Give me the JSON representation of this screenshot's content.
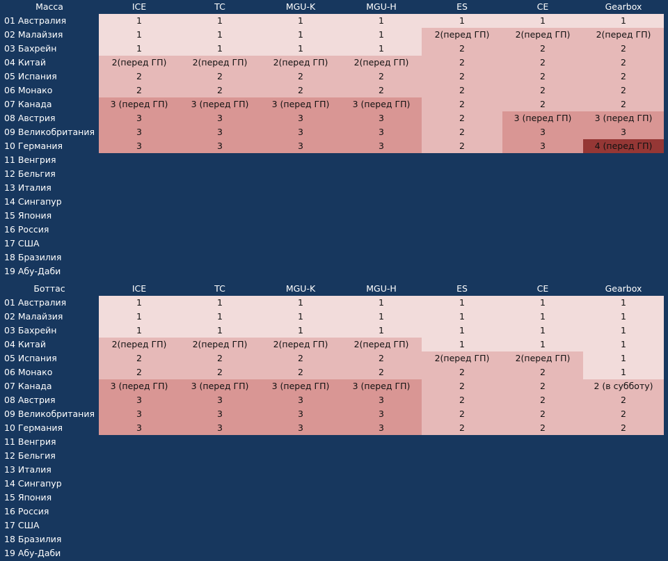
{
  "colors": {
    "background": "#17375e",
    "lvl1": "#f2dcdb",
    "lvl2": "#e6b9b8",
    "lvl3": "#d99694",
    "lvl4": "#953735"
  },
  "columns": [
    "ICE",
    "TC",
    "MGU-K",
    "MGU-H",
    "ES",
    "CE",
    "Gearbox"
  ],
  "tables": [
    {
      "title": "Масса",
      "rows": [
        {
          "race": "01 Австралия",
          "cells": [
            {
              "v": "1",
              "l": 1
            },
            {
              "v": "1",
              "l": 1
            },
            {
              "v": "1",
              "l": 1
            },
            {
              "v": "1",
              "l": 1
            },
            {
              "v": "1",
              "l": 1
            },
            {
              "v": "1",
              "l": 1
            },
            {
              "v": "1",
              "l": 1
            }
          ]
        },
        {
          "race": "02 Малайзия",
          "cells": [
            {
              "v": "1",
              "l": 1
            },
            {
              "v": "1",
              "l": 1
            },
            {
              "v": "1",
              "l": 1
            },
            {
              "v": "1",
              "l": 1
            },
            {
              "v": "2(перед ГП)",
              "l": 2
            },
            {
              "v": "2(перед ГП)",
              "l": 2
            },
            {
              "v": "2(перед ГП)",
              "l": 2
            }
          ]
        },
        {
          "race": "03 Бахрейн",
          "cells": [
            {
              "v": "1",
              "l": 1
            },
            {
              "v": "1",
              "l": 1
            },
            {
              "v": "1",
              "l": 1
            },
            {
              "v": "1",
              "l": 1
            },
            {
              "v": "2",
              "l": 2
            },
            {
              "v": "2",
              "l": 2
            },
            {
              "v": "2",
              "l": 2
            }
          ]
        },
        {
          "race": "04 Китай",
          "cells": [
            {
              "v": "2(перед ГП)",
              "l": 2
            },
            {
              "v": "2(перед ГП)",
              "l": 2
            },
            {
              "v": "2(перед ГП)",
              "l": 2
            },
            {
              "v": "2(перед ГП)",
              "l": 2
            },
            {
              "v": "2",
              "l": 2
            },
            {
              "v": "2",
              "l": 2
            },
            {
              "v": "2",
              "l": 2
            }
          ]
        },
        {
          "race": "05 Испания",
          "cells": [
            {
              "v": "2",
              "l": 2
            },
            {
              "v": "2",
              "l": 2
            },
            {
              "v": "2",
              "l": 2
            },
            {
              "v": "2",
              "l": 2
            },
            {
              "v": "2",
              "l": 2
            },
            {
              "v": "2",
              "l": 2
            },
            {
              "v": "2",
              "l": 2
            }
          ]
        },
        {
          "race": "06 Монако",
          "cells": [
            {
              "v": "2",
              "l": 2
            },
            {
              "v": "2",
              "l": 2
            },
            {
              "v": "2",
              "l": 2
            },
            {
              "v": "2",
              "l": 2
            },
            {
              "v": "2",
              "l": 2
            },
            {
              "v": "2",
              "l": 2
            },
            {
              "v": "2",
              "l": 2
            }
          ]
        },
        {
          "race": "07 Канада",
          "cells": [
            {
              "v": "3 (перед ГП)",
              "l": 3
            },
            {
              "v": "3 (перед ГП)",
              "l": 3
            },
            {
              "v": "3 (перед ГП)",
              "l": 3
            },
            {
              "v": "3 (перед ГП)",
              "l": 3
            },
            {
              "v": "2",
              "l": 2
            },
            {
              "v": "2",
              "l": 2
            },
            {
              "v": "2",
              "l": 2
            }
          ]
        },
        {
          "race": "08 Австрия",
          "cells": [
            {
              "v": "3",
              "l": 3
            },
            {
              "v": "3",
              "l": 3
            },
            {
              "v": "3",
              "l": 3
            },
            {
              "v": "3",
              "l": 3
            },
            {
              "v": "2",
              "l": 2
            },
            {
              "v": "3 (перед ГП)",
              "l": 3
            },
            {
              "v": "3 (перед ГП)",
              "l": 3
            }
          ]
        },
        {
          "race": "09 Великобритания",
          "cells": [
            {
              "v": "3",
              "l": 3
            },
            {
              "v": "3",
              "l": 3
            },
            {
              "v": "3",
              "l": 3
            },
            {
              "v": "3",
              "l": 3
            },
            {
              "v": "2",
              "l": 2
            },
            {
              "v": "3",
              "l": 3
            },
            {
              "v": "3",
              "l": 3
            }
          ]
        },
        {
          "race": "10 Германия",
          "cells": [
            {
              "v": "3",
              "l": 3
            },
            {
              "v": "3",
              "l": 3
            },
            {
              "v": "3",
              "l": 3
            },
            {
              "v": "3",
              "l": 3
            },
            {
              "v": "2",
              "l": 2
            },
            {
              "v": "3",
              "l": 3
            },
            {
              "v": "4 (перед ГП)",
              "l": 4
            }
          ]
        },
        {
          "race": "11 Венгрия",
          "cells": []
        },
        {
          "race": "12 Бельгия",
          "cells": []
        },
        {
          "race": "13 Италия",
          "cells": []
        },
        {
          "race": "14 Сингапур",
          "cells": []
        },
        {
          "race": "15 Япония",
          "cells": []
        },
        {
          "race": "16 Россия",
          "cells": []
        },
        {
          "race": "17 США",
          "cells": []
        },
        {
          "race": "18 Бразилия",
          "cells": []
        },
        {
          "race": "19 Абу-Даби",
          "cells": []
        }
      ]
    },
    {
      "title": "Боттас",
      "rows": [
        {
          "race": "01 Австралия",
          "cells": [
            {
              "v": "1",
              "l": 1
            },
            {
              "v": "1",
              "l": 1
            },
            {
              "v": "1",
              "l": 1
            },
            {
              "v": "1",
              "l": 1
            },
            {
              "v": "1",
              "l": 1
            },
            {
              "v": "1",
              "l": 1
            },
            {
              "v": "1",
              "l": 1
            }
          ]
        },
        {
          "race": "02 Малайзия",
          "cells": [
            {
              "v": "1",
              "l": 1
            },
            {
              "v": "1",
              "l": 1
            },
            {
              "v": "1",
              "l": 1
            },
            {
              "v": "1",
              "l": 1
            },
            {
              "v": "1",
              "l": 1
            },
            {
              "v": "1",
              "l": 1
            },
            {
              "v": "1",
              "l": 1
            }
          ]
        },
        {
          "race": "03 Бахрейн",
          "cells": [
            {
              "v": "1",
              "l": 1
            },
            {
              "v": "1",
              "l": 1
            },
            {
              "v": "1",
              "l": 1
            },
            {
              "v": "1",
              "l": 1
            },
            {
              "v": "1",
              "l": 1
            },
            {
              "v": "1",
              "l": 1
            },
            {
              "v": "1",
              "l": 1
            }
          ]
        },
        {
          "race": "04 Китай",
          "cells": [
            {
              "v": "2(перед ГП)",
              "l": 2
            },
            {
              "v": "2(перед ГП)",
              "l": 2
            },
            {
              "v": "2(перед ГП)",
              "l": 2
            },
            {
              "v": "2(перед ГП)",
              "l": 2
            },
            {
              "v": "1",
              "l": 1
            },
            {
              "v": "1",
              "l": 1
            },
            {
              "v": "1",
              "l": 1
            }
          ]
        },
        {
          "race": "05 Испания",
          "cells": [
            {
              "v": "2",
              "l": 2
            },
            {
              "v": "2",
              "l": 2
            },
            {
              "v": "2",
              "l": 2
            },
            {
              "v": "2",
              "l": 2
            },
            {
              "v": "2(перед ГП)",
              "l": 2
            },
            {
              "v": "2(перед ГП)",
              "l": 2
            },
            {
              "v": "1",
              "l": 1
            }
          ]
        },
        {
          "race": "06 Монако",
          "cells": [
            {
              "v": "2",
              "l": 2
            },
            {
              "v": "2",
              "l": 2
            },
            {
              "v": "2",
              "l": 2
            },
            {
              "v": "2",
              "l": 2
            },
            {
              "v": "2",
              "l": 2
            },
            {
              "v": "2",
              "l": 2
            },
            {
              "v": "1",
              "l": 1
            }
          ]
        },
        {
          "race": "07 Канада",
          "cells": [
            {
              "v": "3 (перед ГП)",
              "l": 3
            },
            {
              "v": "3 (перед ГП)",
              "l": 3
            },
            {
              "v": "3 (перед ГП)",
              "l": 3
            },
            {
              "v": "3 (перед ГП)",
              "l": 3
            },
            {
              "v": "2",
              "l": 2
            },
            {
              "v": "2",
              "l": 2
            },
            {
              "v": "2 (в субботу)",
              "l": 2
            }
          ]
        },
        {
          "race": "08 Австрия",
          "cells": [
            {
              "v": "3",
              "l": 3
            },
            {
              "v": "3",
              "l": 3
            },
            {
              "v": "3",
              "l": 3
            },
            {
              "v": "3",
              "l": 3
            },
            {
              "v": "2",
              "l": 2
            },
            {
              "v": "2",
              "l": 2
            },
            {
              "v": "2",
              "l": 2
            }
          ]
        },
        {
          "race": "09 Великобритания",
          "cells": [
            {
              "v": "3",
              "l": 3
            },
            {
              "v": "3",
              "l": 3
            },
            {
              "v": "3",
              "l": 3
            },
            {
              "v": "3",
              "l": 3
            },
            {
              "v": "2",
              "l": 2
            },
            {
              "v": "2",
              "l": 2
            },
            {
              "v": "2",
              "l": 2
            }
          ]
        },
        {
          "race": "10 Германия",
          "cells": [
            {
              "v": "3",
              "l": 3
            },
            {
              "v": "3",
              "l": 3
            },
            {
              "v": "3",
              "l": 3
            },
            {
              "v": "3",
              "l": 3
            },
            {
              "v": "2",
              "l": 2
            },
            {
              "v": "2",
              "l": 2
            },
            {
              "v": "2",
              "l": 2
            }
          ]
        },
        {
          "race": "11 Венгрия",
          "cells": []
        },
        {
          "race": "12 Бельгия",
          "cells": []
        },
        {
          "race": "13 Италия",
          "cells": []
        },
        {
          "race": "14 Сингапур",
          "cells": []
        },
        {
          "race": "15 Япония",
          "cells": []
        },
        {
          "race": "16 Россия",
          "cells": []
        },
        {
          "race": "17 США",
          "cells": []
        },
        {
          "race": "18 Бразилия",
          "cells": []
        },
        {
          "race": "19 Абу-Даби",
          "cells": []
        }
      ]
    }
  ]
}
